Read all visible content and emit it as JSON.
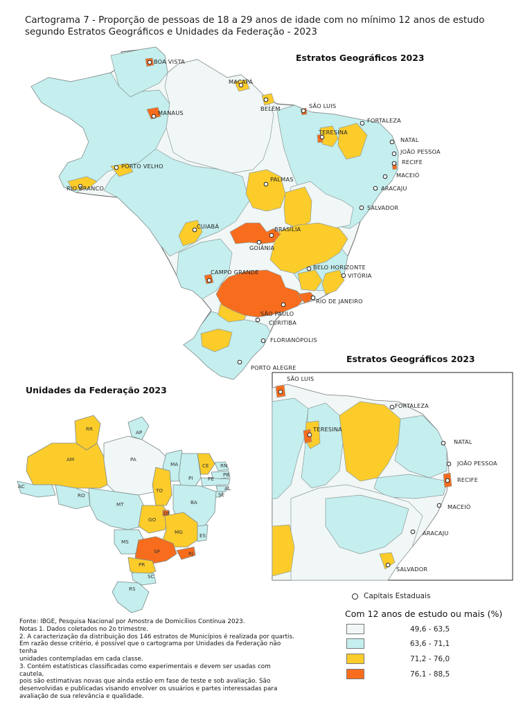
{
  "title": "Cartograma 7 - Proporção de pessoas de 18 a 29 anos de idade com no mínimo 12 anos de estudo segundo Estratos Geográficos e Unidades da Federação - 2023",
  "main_map": {
    "title": "Estratos Geográficos 2023",
    "capitals": [
      {
        "name": "BOA VISTA"
      },
      {
        "name": "MACAPÁ"
      },
      {
        "name": "MANAUS"
      },
      {
        "name": "BELÉM"
      },
      {
        "name": "SÃO LUIS"
      },
      {
        "name": "FORTALEZA"
      },
      {
        "name": "TERESINA"
      },
      {
        "name": "NATAL"
      },
      {
        "name": "JOÃO PESSOA"
      },
      {
        "name": "RECIFE"
      },
      {
        "name": "MACEIÓ"
      },
      {
        "name": "ARACAJU"
      },
      {
        "name": "SALVADOR"
      },
      {
        "name": "PALMAS"
      },
      {
        "name": "PORTO VELHO"
      },
      {
        "name": "RIO BRANCO"
      },
      {
        "name": "CUIABÁ"
      },
      {
        "name": "BRASÍLIA"
      },
      {
        "name": "GOIÂNIA"
      },
      {
        "name": "BELO HORIZONTE"
      },
      {
        "name": "VITÓRIA"
      },
      {
        "name": "CAMPO GRANDE"
      },
      {
        "name": "RIO DE JANEIRO"
      },
      {
        "name": "SÃO PAULO"
      },
      {
        "name": "CURITIBA"
      },
      {
        "name": "FLORIANÓPOLIS"
      },
      {
        "name": "PORTO ALEGRE"
      }
    ]
  },
  "inset_map": {
    "title": "Estratos Geográficos 2023",
    "capitals": [
      {
        "name": "SÃO LUIS"
      },
      {
        "name": "FORTALEZA"
      },
      {
        "name": "TERESINA"
      },
      {
        "name": "NATAL"
      },
      {
        "name": "JOÃO PESSOA"
      },
      {
        "name": "RECIFE"
      },
      {
        "name": "MACEIÓ"
      },
      {
        "name": "ARACAJU"
      },
      {
        "name": "SALVADOR"
      }
    ]
  },
  "uf_map": {
    "title": "Unidades da Federação 2023",
    "states": [
      {
        "code": "RR",
        "class": 3
      },
      {
        "code": "AP",
        "class": 2
      },
      {
        "code": "AM",
        "class": 3
      },
      {
        "code": "PA",
        "class": 1
      },
      {
        "code": "MA",
        "class": 2
      },
      {
        "code": "CE",
        "class": 3
      },
      {
        "code": "RN",
        "class": 2
      },
      {
        "code": "PB",
        "class": 2
      },
      {
        "code": "PE",
        "class": 2
      },
      {
        "code": "AL",
        "class": 2
      },
      {
        "code": "SE",
        "class": 2
      },
      {
        "code": "PI",
        "class": 2
      },
      {
        "code": "AC",
        "class": 2
      },
      {
        "code": "RO",
        "class": 2
      },
      {
        "code": "TO",
        "class": 3
      },
      {
        "code": "BA",
        "class": 2
      },
      {
        "code": "MT",
        "class": 2
      },
      {
        "code": "DF",
        "class": 4
      },
      {
        "code": "GO",
        "class": 3
      },
      {
        "code": "MG",
        "class": 3
      },
      {
        "code": "ES",
        "class": 2
      },
      {
        "code": "MS",
        "class": 2
      },
      {
        "code": "SP",
        "class": 4
      },
      {
        "code": "RJ",
        "class": 4
      },
      {
        "code": "PR",
        "class": 3
      },
      {
        "code": "SC",
        "class": 2
      },
      {
        "code": "RS",
        "class": 2
      }
    ]
  },
  "legend": {
    "capitals_label": "Capitais Estaduais",
    "title": "Com 12 anos de estudo ou mais (%)",
    "classes": [
      {
        "label": "49,6 - 63,5",
        "color": "#f1f7f6"
      },
      {
        "label": "63,6 - 71,1",
        "color": "#c5eeee"
      },
      {
        "label": "71,2 - 76,0",
        "color": "#fccc2b"
      },
      {
        "label": "76,1 - 88,5",
        "color": "#f86d1d"
      }
    ]
  },
  "notes": {
    "source": "Fonte: IBGE, Pesquisa Nacional por Amostra de Domicílios Contínua 2023.",
    "n1": "Notas 1. Dados coletados no 2o trimestre.",
    "n2a": "2. A caracterização da distribuição dos 146 estratos de Municípios é realizada por quartis.",
    "n2b": "Em razão desse critério, é possível que o cartograma por Unidades da Federação não tenha",
    "n2c": "unidades contempladas em cada classe.",
    "n3a": "3. Contém estatísticas classificadas como experimentais e devem ser usadas com cautela,",
    "n3b": "pois são estimativas novas que ainda estão em fase de teste e sob avaliação. São",
    "n3c": "desenvolvidas e publicadas visando envolver os usuários e partes interessadas para",
    "n3d": "avaliação de sua relevância e qualidade."
  }
}
